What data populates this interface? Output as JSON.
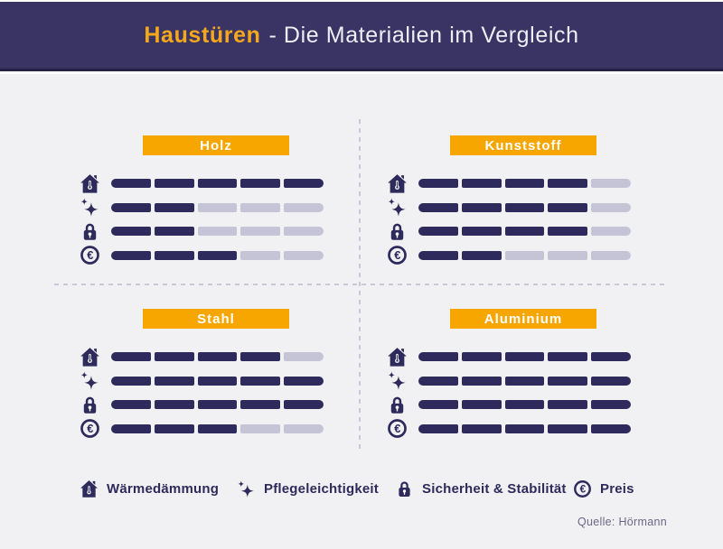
{
  "header": {
    "title_highlight": "Haustüren",
    "title_rest": "- Die Materialien im Vergleich"
  },
  "chart_data": {
    "type": "bar",
    "title": "Haustüren - Die Materialien im Vergleich",
    "scale_max": 5,
    "legend_position": "bottom",
    "criteria": [
      {
        "id": "waermedaemmung",
        "label": "Wärmedämmung",
        "icon": "house-insulation-icon"
      },
      {
        "id": "pflegeleichtigkeit",
        "label": "Pflegeleichtigkeit",
        "icon": "sparkle-icon"
      },
      {
        "id": "sicherheit",
        "label": "Sicherheit & Stabilität",
        "icon": "lock-icon"
      },
      {
        "id": "preis",
        "label": "Preis",
        "icon": "euro-icon"
      }
    ],
    "materials": [
      {
        "name": "Holz",
        "values": [
          5,
          2,
          2,
          3
        ]
      },
      {
        "name": "Kunststoff",
        "values": [
          4,
          4,
          4,
          2
        ]
      },
      {
        "name": "Stahl",
        "values": [
          4,
          5,
          5,
          3
        ]
      },
      {
        "name": "Aluminium",
        "values": [
          5,
          5,
          5,
          5
        ]
      }
    ]
  },
  "source": {
    "text": "Quelle: Hörmann"
  },
  "colors": {
    "header_bg": "#3A3464",
    "header_border": "#231F45",
    "title_orange": "#F5A81C",
    "accent_orange": "#F7A600",
    "bar_filled": "#2E2A5B",
    "bar_empty": "#C5C4D6",
    "page_bg": "#F1F1F3",
    "text_navy": "#2E2A5B",
    "source_text": "#6B6787",
    "divider": "#C9C8D6"
  }
}
